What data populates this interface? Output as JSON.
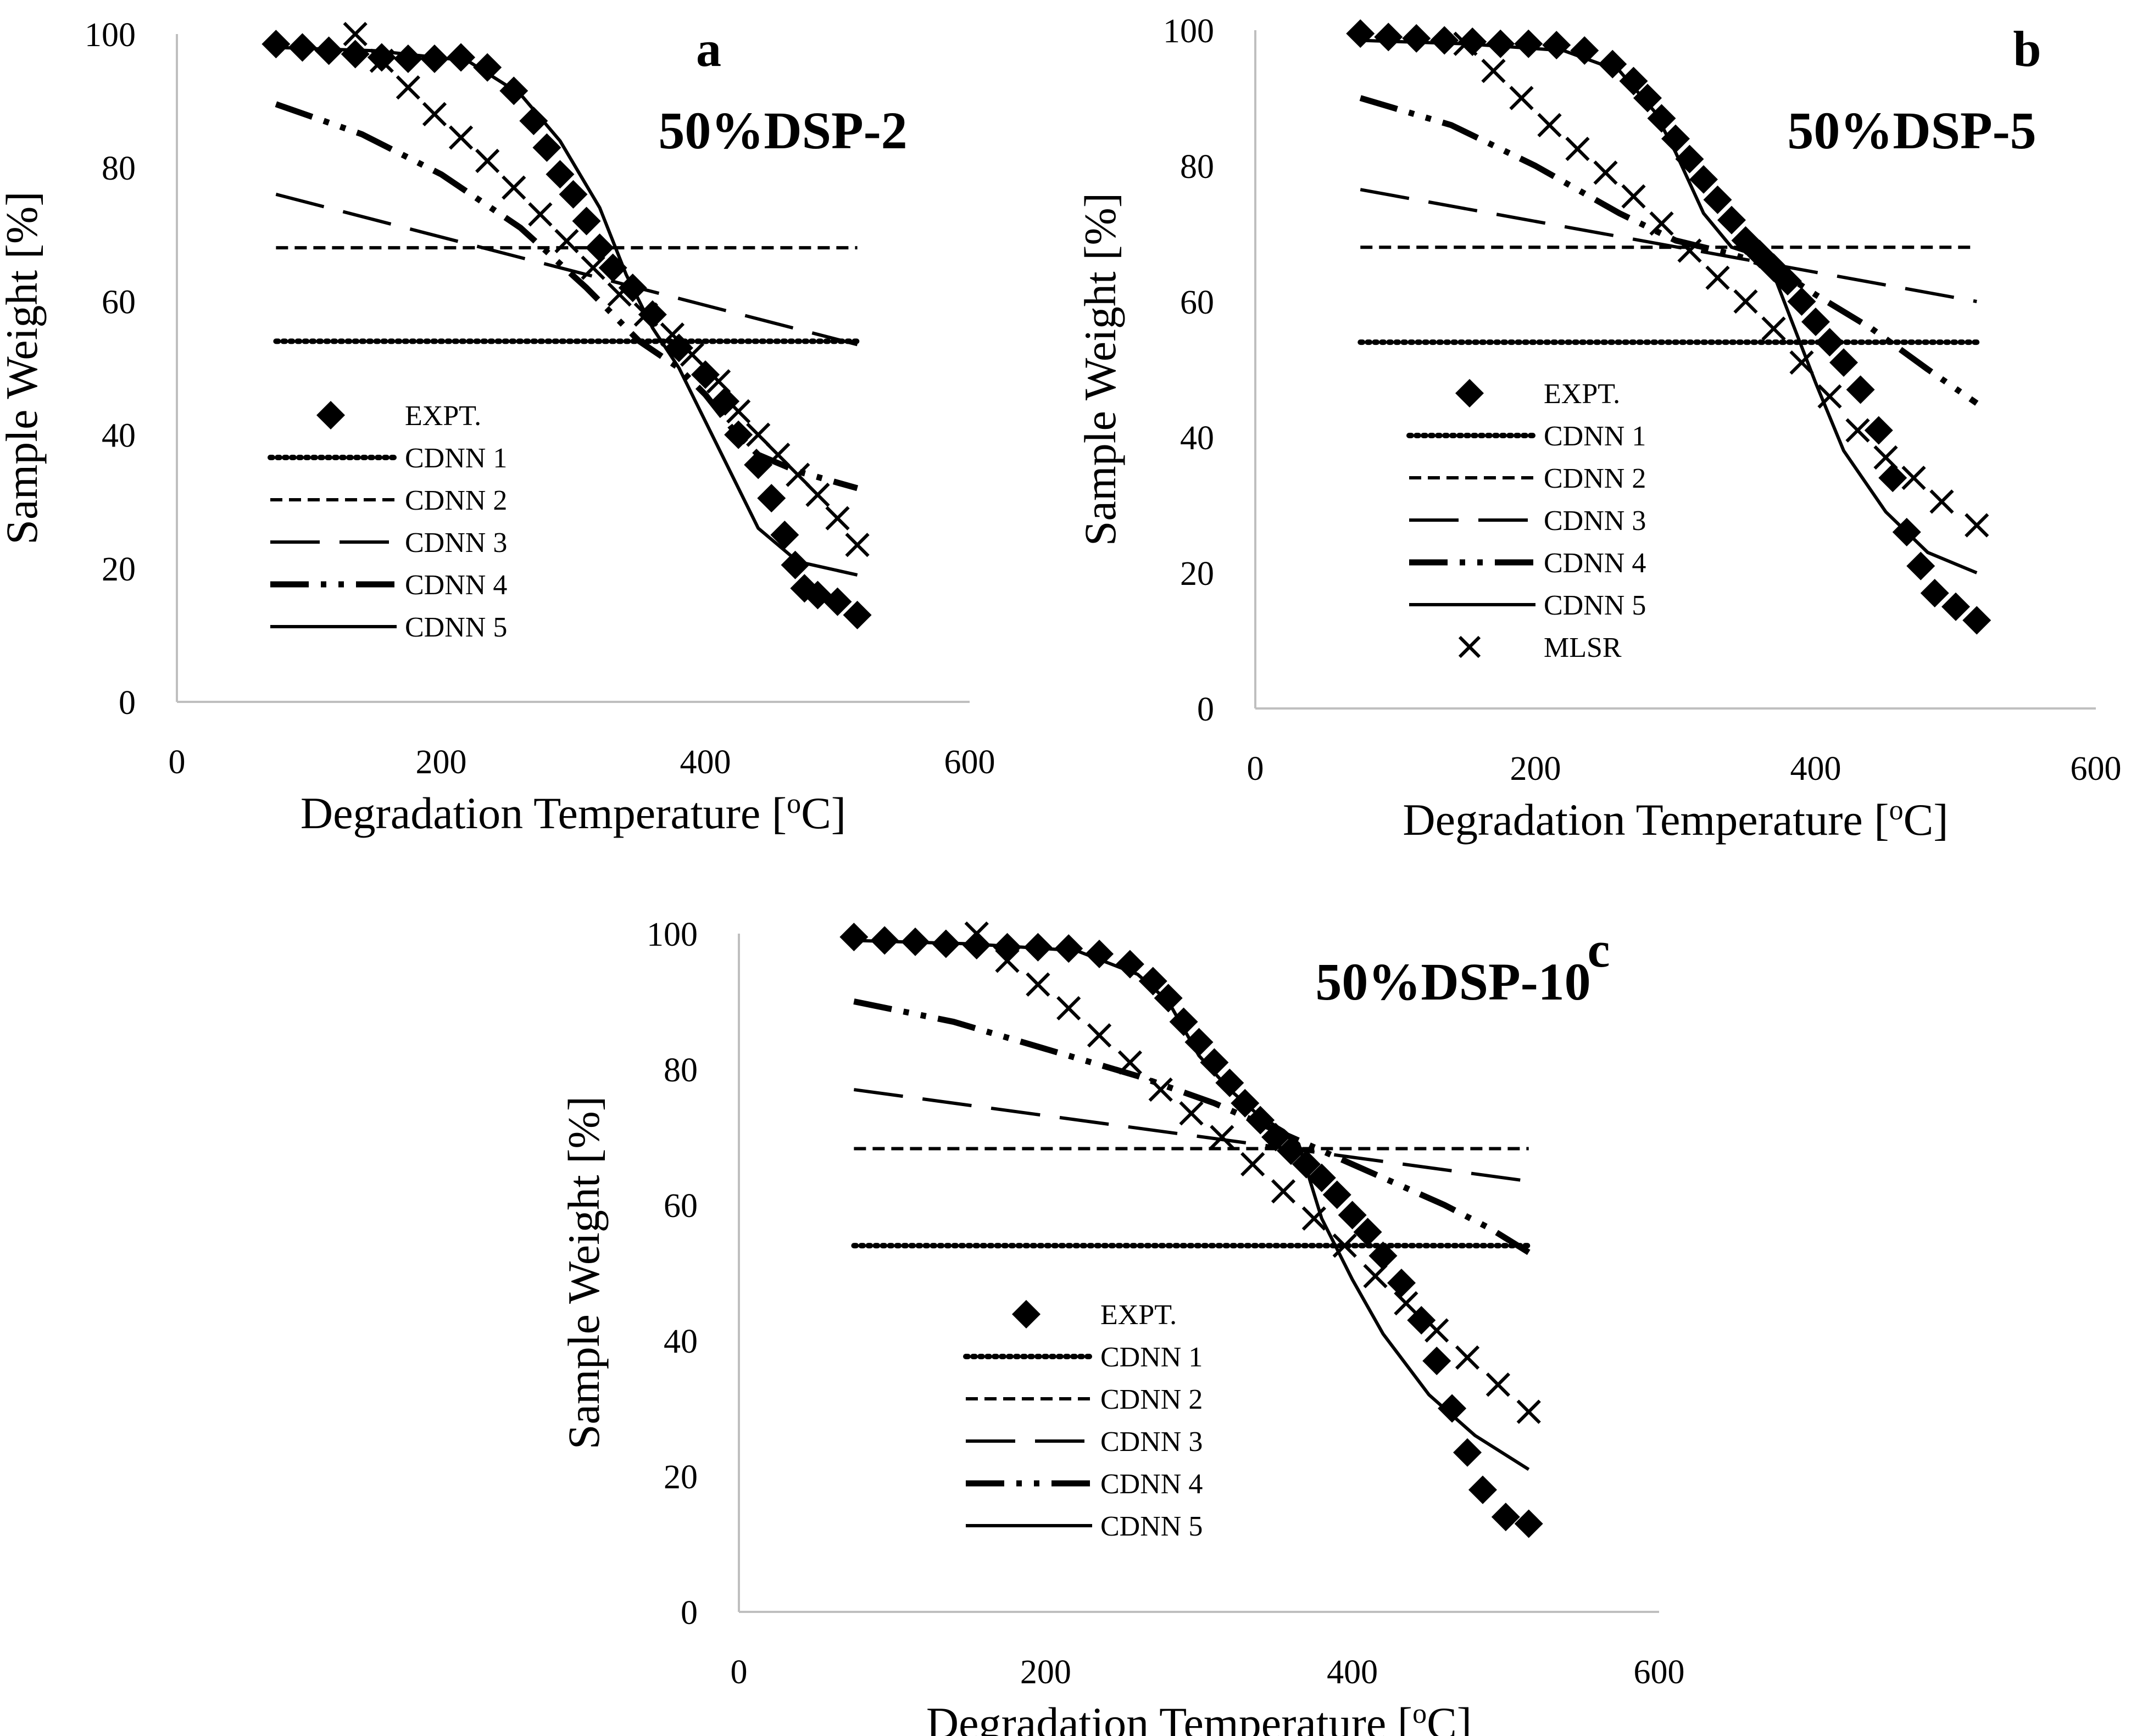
{
  "figure": {
    "description_label": "Sample weight vs degradation temperature: experimental data, CDNN 1-5 models and MLSR"
  },
  "chart_data": [
    {
      "id": "a",
      "type": "line",
      "panel_label": "a",
      "title": "50%DSP-2",
      "xlabel": "Degradation Temperature [",
      "xlabel_sup": "o",
      "xlabel_end": "C]",
      "ylabel": "Sample Weight [%]",
      "xlim": [
        0,
        600
      ],
      "ylim": [
        0,
        100
      ],
      "xticks": [
        "0",
        "200",
        "400",
        "600"
      ],
      "yticks": [
        "0",
        "20",
        "40",
        "60",
        "80",
        "100"
      ],
      "grid": false,
      "legend_position": "lower-left",
      "legend": [
        "EXPT.",
        "CDNN 1",
        "CDNN 2",
        "CDNN 3",
        "CDNN 4",
        "CDNN 5"
      ],
      "series": [
        {
          "name": "EXPT.",
          "style": "diamond",
          "x": [
            75,
            95,
            115,
            135,
            155,
            175,
            195,
            215,
            235,
            255,
            270,
            280,
            290,
            300,
            310,
            320,
            330,
            345,
            360,
            380,
            400,
            415,
            425,
            440,
            450,
            460,
            468,
            475,
            485,
            500,
            515
          ],
          "y": [
            98.5,
            98,
            97.5,
            97,
            96.5,
            96.3,
            96.3,
            96.5,
            95,
            91.5,
            87,
            83,
            79,
            76,
            72,
            68,
            65,
            62,
            58,
            53,
            49,
            45,
            40,
            35.5,
            30.5,
            25,
            20.5,
            17,
            16,
            15,
            13
          ]
        },
        {
          "name": "CDNN 1",
          "style": "dotted",
          "x": [
            75,
            515
          ],
          "y": [
            54,
            54
          ]
        },
        {
          "name": "CDNN 2",
          "style": "dashed-short",
          "x": [
            75,
            515
          ],
          "y": [
            68,
            68
          ]
        },
        {
          "name": "CDNN 3",
          "style": "dashed-long",
          "x": [
            75,
            515
          ],
          "y": [
            76,
            53.5
          ]
        },
        {
          "name": "CDNN 4",
          "style": "dash-dot-dot",
          "x": [
            75,
            140,
            200,
            260,
            310,
            350,
            380,
            400,
            420,
            440,
            470,
            515
          ],
          "y": [
            89.5,
            85,
            79,
            71,
            62,
            54,
            50,
            46,
            41,
            37,
            34.5,
            32
          ]
        },
        {
          "name": "CDNN 5",
          "style": "solid",
          "x": [
            75,
            150,
            220,
            260,
            290,
            320,
            340,
            360,
            380,
            400,
            420,
            440,
            470,
            515
          ],
          "y": [
            98,
            97.5,
            96,
            91,
            84,
            74,
            64,
            56,
            50,
            42,
            34,
            26,
            21,
            19
          ]
        },
        {
          "name": "MLSR",
          "style": "cross",
          "x": [
            135,
            155,
            175,
            195,
            215,
            235,
            255,
            275,
            295,
            315,
            335,
            355,
            375,
            390,
            410,
            425,
            440,
            455,
            470,
            485,
            500,
            515
          ],
          "y": [
            100,
            96,
            92,
            88,
            84.5,
            81,
            77,
            73,
            69,
            65,
            61,
            58,
            55,
            52,
            48,
            43.5,
            40,
            37,
            34,
            31,
            27.5,
            23.5
          ]
        }
      ]
    },
    {
      "id": "b",
      "type": "line",
      "panel_label": "b",
      "title": "50%DSP-5",
      "xlabel": "Degradation Temperature [",
      "xlabel_sup": "o",
      "xlabel_end": "C]",
      "ylabel": "Sample Weight [%]",
      "xlim": [
        0,
        600
      ],
      "ylim": [
        0,
        100
      ],
      "xticks": [
        "0",
        "200",
        "400",
        "600"
      ],
      "yticks": [
        "0",
        "20",
        "40",
        "60",
        "80",
        "100"
      ],
      "grid": false,
      "legend_position": "lower-left",
      "legend": [
        "EXPT.",
        "CDNN 1",
        "CDNN 2",
        "CDNN 3",
        "CDNN 4",
        "CDNN 5",
        "MLSR"
      ],
      "series": [
        {
          "name": "EXPT.",
          "style": "diamond",
          "x": [
            75,
            95,
            115,
            135,
            155,
            175,
            195,
            215,
            235,
            255,
            270,
            280,
            290,
            300,
            310,
            320,
            330,
            340,
            350,
            360,
            370,
            380,
            390,
            400,
            410,
            420,
            432,
            445,
            455,
            465,
            475,
            485,
            500,
            515
          ],
          "y": [
            99.5,
            99,
            98.8,
            98.5,
            98.3,
            98,
            98,
            97.8,
            97,
            95,
            92.5,
            90,
            87,
            84,
            81,
            78,
            75,
            72,
            69,
            67,
            65,
            63,
            60,
            57,
            54,
            51,
            47,
            41,
            34,
            26,
            21,
            17,
            15,
            13
          ]
        },
        {
          "name": "CDNN 1",
          "style": "dotted",
          "x": [
            75,
            515
          ],
          "y": [
            54,
            54
          ]
        },
        {
          "name": "CDNN 2",
          "style": "dashed-short",
          "x": [
            75,
            515
          ],
          "y": [
            68,
            68
          ]
        },
        {
          "name": "CDNN 3",
          "style": "dashed-long",
          "x": [
            75,
            515
          ],
          "y": [
            76.5,
            60
          ]
        },
        {
          "name": "CDNN 4",
          "style": "dash-dot-dot",
          "x": [
            75,
            140,
            200,
            260,
            300,
            340,
            370,
            400,
            440,
            480,
            515
          ],
          "y": [
            90,
            86,
            80,
            73,
            69,
            67,
            65,
            61,
            56,
            50,
            45
          ]
        },
        {
          "name": "CDNN 5",
          "style": "solid",
          "x": [
            75,
            150,
            220,
            260,
            285,
            300,
            320,
            340,
            355,
            370,
            385,
            400,
            420,
            450,
            480,
            515
          ],
          "y": [
            98.5,
            98,
            97,
            94,
            88,
            82,
            73,
            68,
            67,
            64,
            56,
            48,
            38,
            29,
            23,
            20
          ]
        },
        {
          "name": "MLSR",
          "style": "cross",
          "x": [
            150,
            170,
            190,
            210,
            230,
            250,
            270,
            290,
            310,
            330,
            350,
            370,
            390,
            410,
            430,
            450,
            470,
            490,
            515
          ],
          "y": [
            98,
            94,
            90,
            86,
            82.5,
            79,
            75.5,
            71.5,
            67.5,
            63.5,
            60,
            56,
            51,
            46,
            41,
            37,
            34,
            30.5,
            27
          ]
        }
      ]
    },
    {
      "id": "c",
      "type": "line",
      "panel_label": "c",
      "title": "50%DSP-10",
      "xlabel": "Degradation Temperature [",
      "xlabel_sup": "o",
      "xlabel_end": "C]",
      "ylabel": "Sample Weight [%]",
      "xlim": [
        0,
        600
      ],
      "ylim": [
        0,
        100
      ],
      "xticks": [
        "0",
        "200",
        "400",
        "600"
      ],
      "yticks": [
        "0",
        "20",
        "40",
        "60",
        "80",
        "100"
      ],
      "grid": false,
      "legend_position": "lower-left",
      "legend": [
        "EXPT.",
        "CDNN 1",
        "CDNN 2",
        "CDNN 3",
        "CDNN 4",
        "CDNN 5"
      ],
      "series": [
        {
          "name": "EXPT.",
          "style": "diamond",
          "x": [
            75,
            95,
            115,
            135,
            155,
            175,
            195,
            215,
            235,
            255,
            270,
            280,
            290,
            300,
            310,
            320,
            330,
            340,
            350,
            360,
            370,
            380,
            390,
            400,
            410,
            420,
            432,
            445,
            455,
            465,
            475,
            485,
            500,
            515
          ],
          "y": [
            99.5,
            99,
            98.8,
            98.5,
            98.3,
            98,
            98,
            97.8,
            97,
            95.5,
            93,
            90.5,
            87,
            84,
            81,
            78,
            75,
            72.5,
            70,
            68,
            66,
            64,
            61.5,
            58.5,
            56,
            52.5,
            48.5,
            43,
            37,
            30,
            23.5,
            18,
            14,
            13
          ]
        },
        {
          "name": "CDNN 1",
          "style": "dotted",
          "x": [
            75,
            515
          ],
          "y": [
            54,
            54
          ]
        },
        {
          "name": "CDNN 2",
          "style": "dashed-short",
          "x": [
            75,
            515
          ],
          "y": [
            68.3,
            68.3
          ]
        },
        {
          "name": "CDNN 3",
          "style": "dashed-long",
          "x": [
            75,
            515
          ],
          "y": [
            77,
            63.5
          ]
        },
        {
          "name": "CDNN 4",
          "style": "dash-dot-dot",
          "x": [
            75,
            140,
            200,
            260,
            310,
            350,
            380,
            420,
            460,
            490,
            515
          ],
          "y": [
            90,
            87,
            83,
            79,
            75,
            71,
            68,
            64,
            60,
            56.5,
            53
          ]
        },
        {
          "name": "CDNN 5",
          "style": "solid",
          "x": [
            75,
            150,
            220,
            260,
            280,
            300,
            320,
            340,
            355,
            365,
            380,
            400,
            420,
            450,
            480,
            515
          ],
          "y": [
            99,
            98.5,
            97.5,
            94,
            90,
            82,
            77,
            73,
            71,
            69,
            58,
            49,
            41,
            32,
            26,
            21
          ]
        },
        {
          "name": "MLSR",
          "style": "cross",
          "x": [
            155,
            175,
            195,
            215,
            235,
            255,
            275,
            295,
            315,
            335,
            355,
            375,
            395,
            415,
            435,
            455,
            475,
            495,
            515
          ],
          "y": [
            100,
            96,
            92.5,
            89,
            85,
            81,
            77,
            73.5,
            70,
            66,
            62,
            58,
            54,
            49.5,
            45.5,
            41.5,
            37.5,
            33.5,
            29.5
          ]
        }
      ]
    }
  ]
}
